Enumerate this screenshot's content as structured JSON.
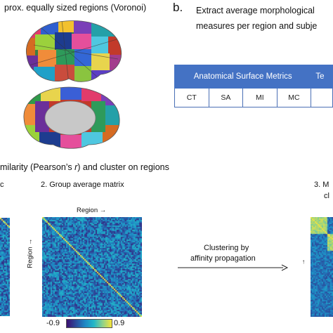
{
  "panel_a": {
    "title_fragment": "prox. equally sized regions (Voronoi)"
  },
  "panel_b": {
    "letter": "b.",
    "title_line1": "Extract average morphological",
    "title_line2": "measures per region and subje",
    "table": {
      "header": "Anatomical Surface Metrics",
      "header_clipped": "Te",
      "columns": [
        "CT",
        "SA",
        "MI",
        "MC"
      ]
    }
  },
  "panel_c": {
    "title_fragment": "milarity (Pearson’s r) and cluster on regions",
    "step1_fragment": "c",
    "step2_label": "2. Group average matrix",
    "step3_fragment": "3. M",
    "step3_fragment_line2": "cl",
    "axis_region_x": "Region →",
    "axis_region_y": "Region →",
    "colorbar_min": "-0.9",
    "colorbar_max": "0.9",
    "arrow_label_line1": "Clustering by",
    "arrow_label_line2": "affinity propagation",
    "colors": {
      "colormap": [
        "#3b0f70",
        "#2c4a9a",
        "#1f86c4",
        "#22b6c8",
        "#8fd18a",
        "#f6e43a"
      ]
    }
  }
}
